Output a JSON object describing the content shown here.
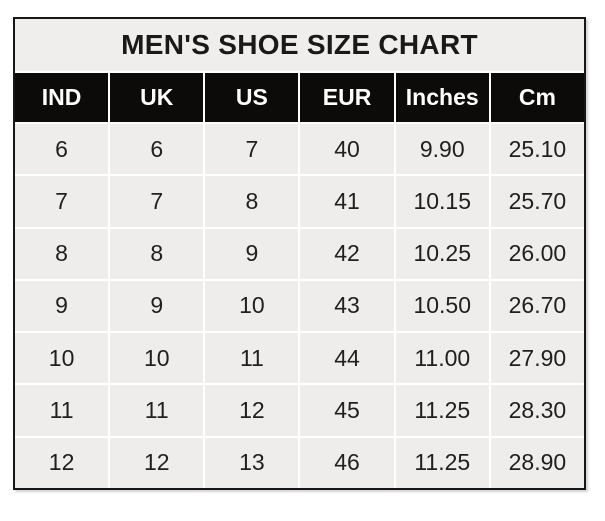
{
  "chart_data": {
    "type": "table",
    "title": "MEN'S SHOE SIZE CHART",
    "columns": [
      "IND",
      "UK",
      "US",
      "EUR",
      "Inches",
      "Cm"
    ],
    "rows": [
      [
        "6",
        "6",
        "7",
        "40",
        "9.90",
        "25.10"
      ],
      [
        "7",
        "7",
        "8",
        "41",
        "10.15",
        "25.70"
      ],
      [
        "8",
        "8",
        "9",
        "42",
        "10.25",
        "26.00"
      ],
      [
        "9",
        "9",
        "10",
        "43",
        "10.50",
        "26.70"
      ],
      [
        "10",
        "10",
        "11",
        "44",
        "11.00",
        "27.90"
      ],
      [
        "11",
        "11",
        "12",
        "45",
        "11.25",
        "28.30"
      ],
      [
        "12",
        "12",
        "13",
        "46",
        "11.25",
        "28.90"
      ]
    ],
    "layout_hints": {
      "grid": "on",
      "header_style": "black-bar",
      "title_position": "top-center"
    }
  },
  "colors": {
    "outer_border": "#191715",
    "title_bg": "#efeeed",
    "header_bg": "#0d0b0a",
    "header_text": "#ffffff",
    "cell_bg": "#eeedec",
    "grid_line": "#ffffff",
    "body_text": "#21201f",
    "page_bg": "#ffffff"
  }
}
